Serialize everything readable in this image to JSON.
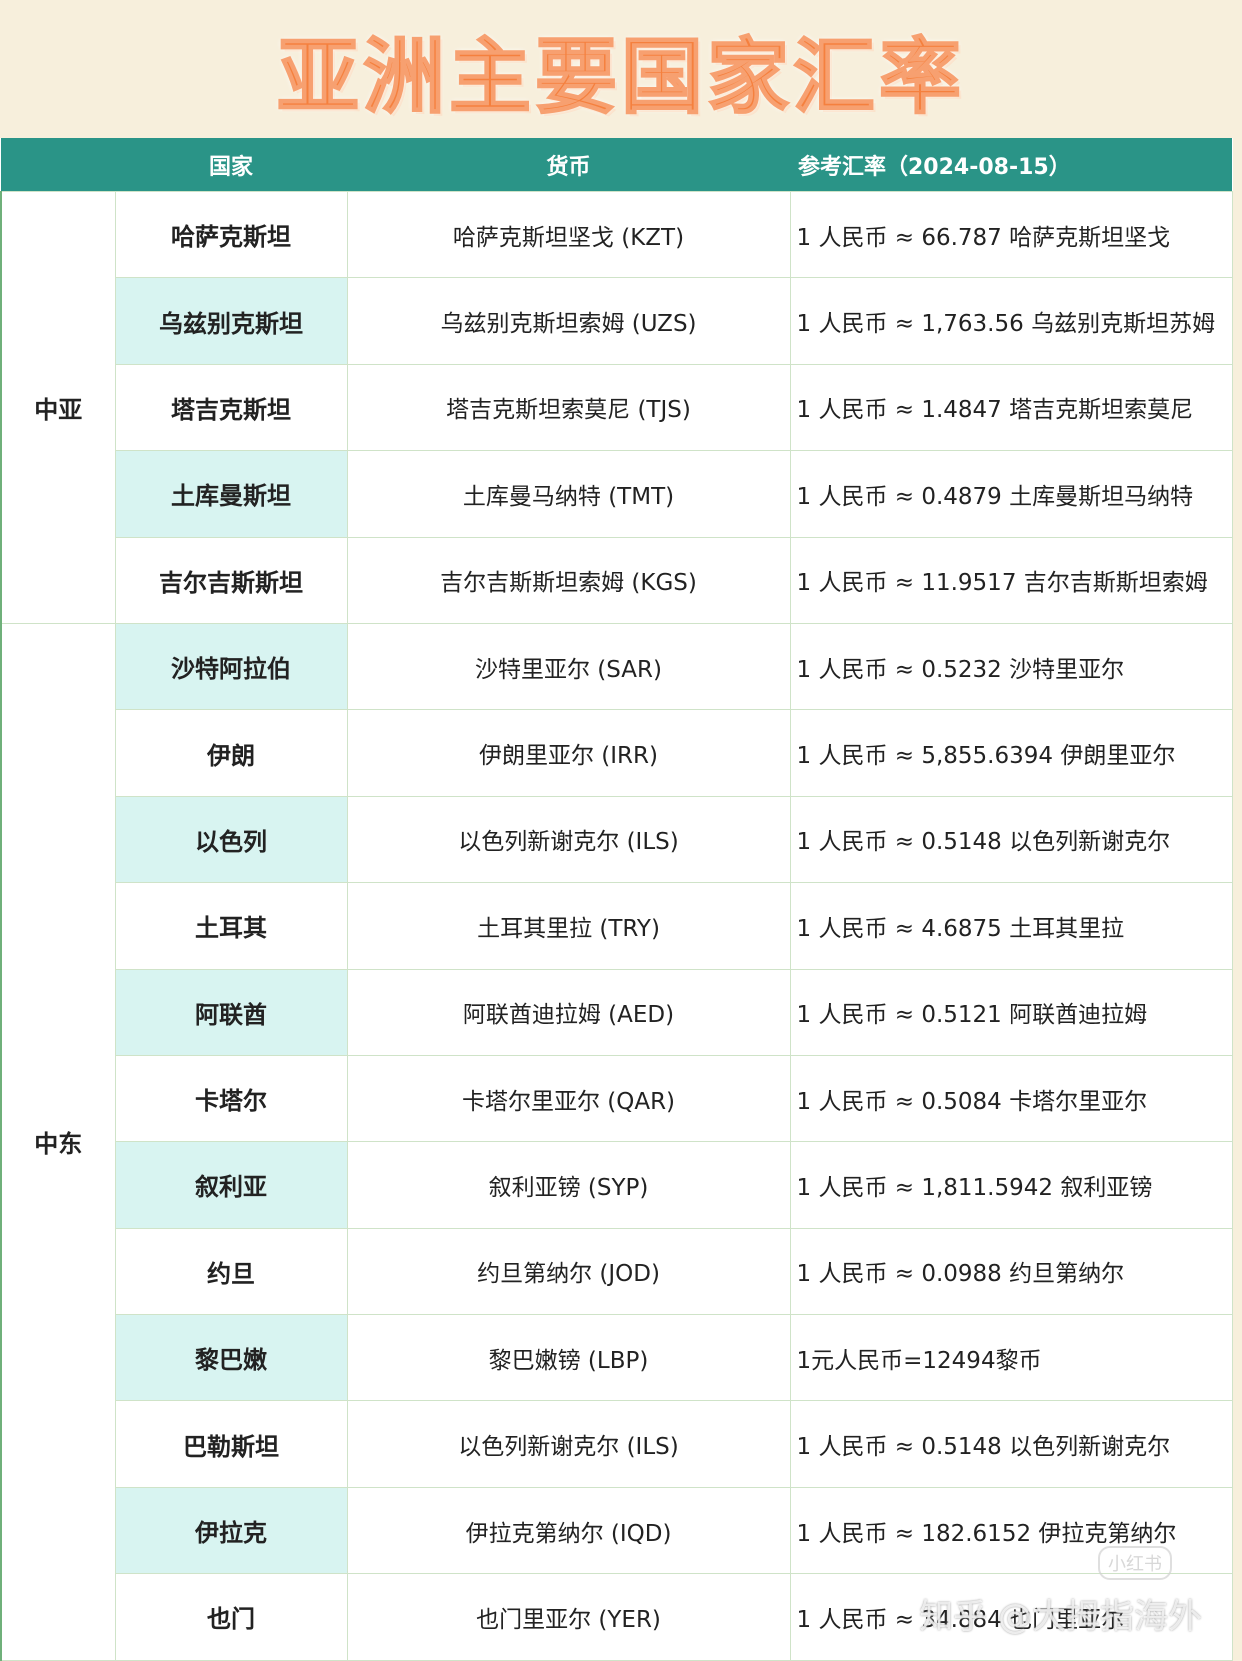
{
  "header": {
    "title": "亚洲主要国家汇率"
  },
  "table": {
    "columns": [
      "国家",
      "货币",
      "参考汇率（2024-08-15）"
    ],
    "groups": [
      {
        "region": "中亚",
        "rows": [
          [
            "哈萨克斯坦",
            "哈萨克斯坦坚戈 (KZT)",
            "1 人民币 ≈ 66.787 哈萨克斯坦坚戈"
          ],
          [
            "乌兹别克斯坦",
            "乌兹别克斯坦索姆 (UZS)",
            "1 人民币 ≈ 1,763.56 乌兹别克斯坦苏姆"
          ],
          [
            "塔吉克斯坦",
            "塔吉克斯坦索莫尼 (TJS)",
            "1 人民币 ≈ 1.4847 塔吉克斯坦索莫尼"
          ],
          [
            "土库曼斯坦",
            "土库曼马纳特 (TMT)",
            "1 人民币 ≈ 0.4879 土库曼斯坦马纳特"
          ],
          [
            "吉尔吉斯斯坦",
            "吉尔吉斯斯坦索姆 (KGS)",
            "1 人民币 ≈ 11.9517 吉尔吉斯斯坦索姆"
          ]
        ]
      },
      {
        "region": "中东",
        "rows": [
          [
            "沙特阿拉伯",
            "沙特里亚尔 (SAR)",
            "1 人民币 ≈ 0.5232 沙特里亚尔"
          ],
          [
            "伊朗",
            "伊朗里亚尔 (IRR)",
            "1 人民币 ≈ 5,855.6394 伊朗里亚尔"
          ],
          [
            "以色列",
            "以色列新谢克尔 (ILS)",
            "1 人民币 ≈ 0.5148 以色列新谢克尔"
          ],
          [
            "土耳其",
            "土耳其里拉 (TRY)",
            "1 人民币 ≈ 4.6875 土耳其里拉"
          ],
          [
            "阿联酋",
            "阿联酋迪拉姆 (AED)",
            "1 人民币 ≈ 0.5121 阿联酋迪拉姆"
          ],
          [
            "卡塔尔",
            "卡塔尔里亚尔 (QAR)",
            "1 人民币 ≈ 0.5084 卡塔尔里亚尔"
          ],
          [
            "叙利亚",
            "叙利亚镑 (SYP)",
            "1 人民币 ≈ 1,811.5942 叙利亚镑"
          ],
          [
            "约旦",
            "约旦第纳尔 (JOD)",
            "1 人民币 ≈ 0.0988 约旦第纳尔"
          ],
          [
            "黎巴嫩",
            "黎巴嫩镑 (LBP)",
            "1元人民币=12494黎币"
          ],
          [
            "巴勒斯坦",
            "以色列新谢克尔 (ILS)",
            "1 人民币 ≈ 0.5148 以色列新谢克尔"
          ],
          [
            "伊拉克",
            "伊拉克第纳尔 (IQD)",
            "1 人民币 ≈ 182.6152 伊拉克第纳尔"
          ],
          [
            "也门",
            "也门里亚尔 (YER)",
            "1 人民币 ≈ 34.884 也门里亚尔"
          ]
        ]
      }
    ]
  },
  "watermark": {
    "text": "知乎 @大拇指海外",
    "logo": "小红书"
  }
}
